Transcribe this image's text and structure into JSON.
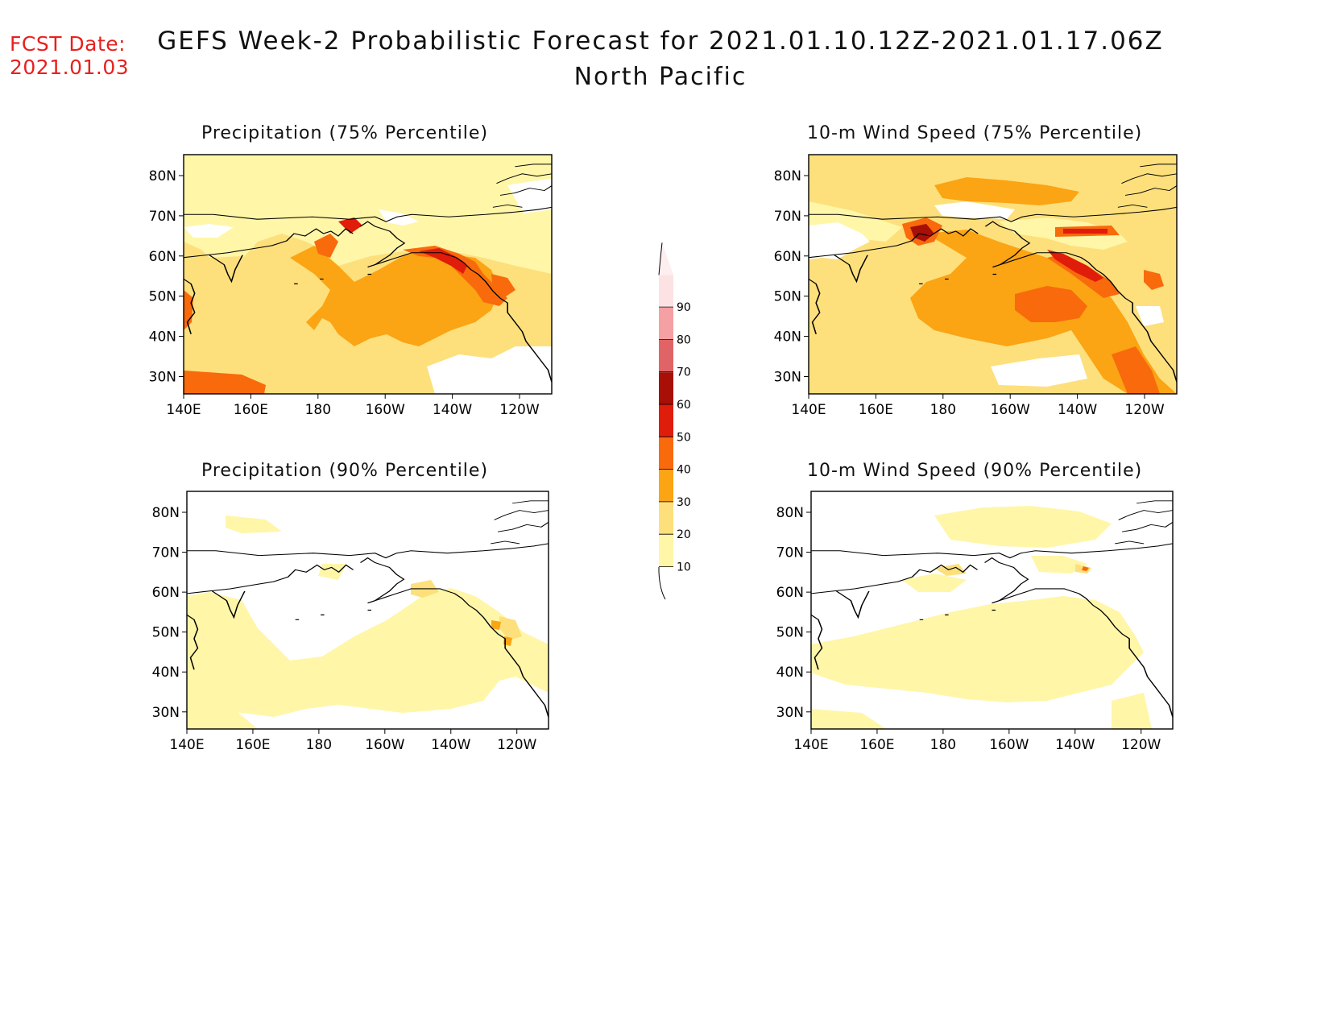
{
  "header": {
    "fcst_label": "FCST Date:",
    "fcst_date": "2021.01.03",
    "title": "GEFS Week-2 Probabilistic Forecast for 2021.01.10.12Z-2021.01.17.06Z",
    "subtitle": "North Pacific"
  },
  "panels": [
    {
      "title": "Precipitation (75% Percentile)"
    },
    {
      "title": "10-m Wind Speed (75% Percentile)"
    },
    {
      "title": "Precipitation (90% Percentile)"
    },
    {
      "title": "10-m Wind Speed (90% Percentile)"
    }
  ],
  "axes": {
    "lat_labels": [
      "80N",
      "70N",
      "60N",
      "50N",
      "40N",
      "30N"
    ],
    "lon_labels": [
      "140E",
      "160E",
      "180",
      "160W",
      "140W",
      "120W"
    ]
  },
  "colorbar": {
    "levels": [
      "10",
      "20",
      "30",
      "40",
      "50",
      "60",
      "70",
      "80",
      "90"
    ],
    "colors": [
      "#fff6a8",
      "#fde07c",
      "#fba414",
      "#f86a0c",
      "#e01c0a",
      "#a80f07",
      "#e06466",
      "#f5a0a2",
      "#fde2e4"
    ]
  }
}
